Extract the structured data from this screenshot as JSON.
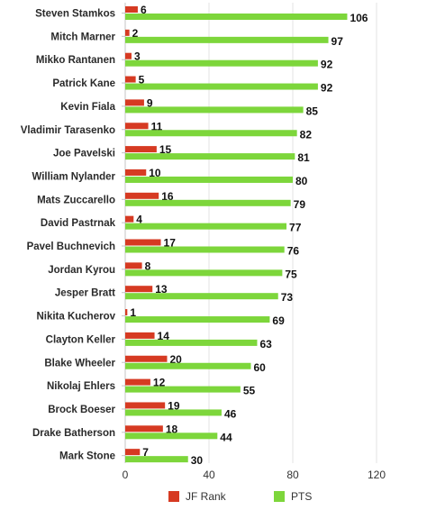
{
  "chart_data": {
    "type": "bar",
    "orientation": "horizontal",
    "categories": [
      "Steven Stamkos",
      "Mitch Marner",
      "Mikko Rantanen",
      "Patrick Kane",
      "Kevin Fiala",
      "Vladimir Tarasenko",
      "Joe Pavelski",
      "William Nylander",
      "Mats Zuccarello",
      "David Pastrnak",
      "Pavel Buchnevich",
      "Jordan Kyrou",
      "Jesper Bratt",
      "Nikita Kucherov",
      "Clayton Keller",
      "Blake Wheeler",
      "Nikolaj Ehlers",
      "Brock Boeser",
      "Drake Batherson",
      "Mark Stone"
    ],
    "series": [
      {
        "name": "JF Rank",
        "color": "#d63a22",
        "values": [
          6,
          2,
          3,
          5,
          9,
          11,
          15,
          10,
          16,
          4,
          17,
          8,
          13,
          1,
          14,
          20,
          12,
          19,
          18,
          7
        ]
      },
      {
        "name": "PTS",
        "color": "#7dd63b",
        "values": [
          106,
          97,
          92,
          92,
          85,
          82,
          81,
          80,
          79,
          77,
          76,
          75,
          73,
          69,
          63,
          60,
          55,
          46,
          44,
          30
        ]
      }
    ],
    "x_ticks": [
      "0",
      "40",
      "80",
      "120"
    ],
    "xlim": [
      0,
      120
    ],
    "title": "",
    "xlabel": "",
    "ylabel": "",
    "grid": "vertical",
    "legend_position": "bottom"
  }
}
